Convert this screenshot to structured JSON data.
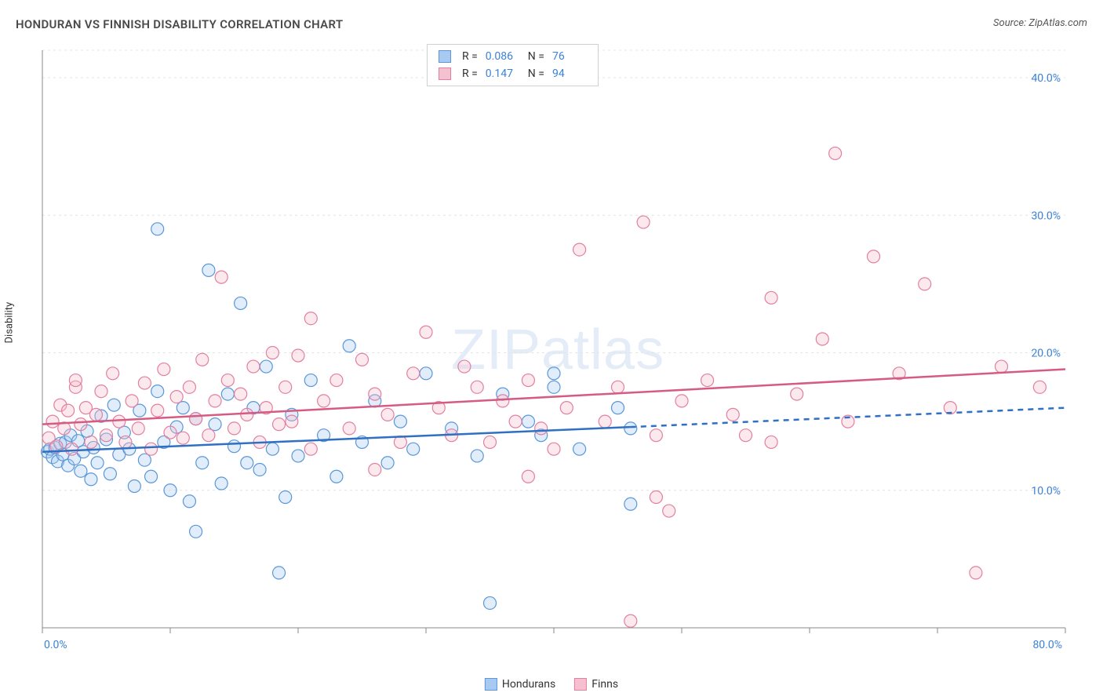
{
  "title": "HONDURAN VS FINNISH DISABILITY CORRELATION CHART",
  "source": "Source: ZipAtlas.com",
  "watermark": "ZIPatlas",
  "ylabel": "Disability",
  "chart": {
    "type": "scatter",
    "background_color": "#ffffff",
    "grid_color": "#e4e4e4",
    "axis_color": "#888888",
    "tick_color": "#666666",
    "label_color": "#3b82d6",
    "xlim": [
      0,
      80
    ],
    "ylim": [
      0,
      42
    ],
    "x_ticks": [
      0,
      10,
      20,
      30,
      40,
      50,
      60,
      70,
      80
    ],
    "x_tick_labels": {
      "0": "0.0%",
      "80": "80.0%"
    },
    "y_grid": [
      10,
      20,
      30,
      40
    ],
    "y_tick_labels": {
      "10": "10.0%",
      "20": "20.0%",
      "30": "30.0%",
      "40": "40.0%"
    },
    "marker_radius": 8,
    "marker_stroke_width": 1.2,
    "marker_fill_opacity": 0.35,
    "trend_line_width": 2.5,
    "series": [
      {
        "id": "hondurans",
        "label": "Hondurans",
        "color_fill": "#a8caf0",
        "color_stroke": "#5a97d8",
        "trend_color": "#2f6fc4",
        "R": "0.086",
        "N": "76",
        "trend": {
          "x1": 0,
          "y1": 12.8,
          "x2": 46,
          "y2": 14.6,
          "x2_dashed": 80,
          "y2_dashed": 16.0
        },
        "points": [
          [
            0.4,
            12.8
          ],
          [
            0.6,
            13.0
          ],
          [
            0.8,
            12.4
          ],
          [
            1.0,
            13.1
          ],
          [
            1.2,
            12.1
          ],
          [
            1.4,
            13.4
          ],
          [
            1.6,
            12.6
          ],
          [
            1.8,
            13.5
          ],
          [
            2.0,
            11.8
          ],
          [
            2.2,
            14.0
          ],
          [
            2.5,
            12.3
          ],
          [
            2.8,
            13.6
          ],
          [
            3.0,
            11.4
          ],
          [
            3.2,
            12.8
          ],
          [
            3.5,
            14.3
          ],
          [
            3.8,
            10.8
          ],
          [
            4.0,
            13.1
          ],
          [
            4.3,
            12.0
          ],
          [
            4.6,
            15.4
          ],
          [
            5.0,
            13.7
          ],
          [
            5.3,
            11.2
          ],
          [
            5.6,
            16.2
          ],
          [
            6.0,
            12.6
          ],
          [
            6.4,
            14.2
          ],
          [
            6.8,
            13.0
          ],
          [
            7.2,
            10.3
          ],
          [
            7.6,
            15.8
          ],
          [
            8.0,
            12.2
          ],
          [
            8.5,
            11.0
          ],
          [
            9.0,
            17.2
          ],
          [
            9.0,
            29.0
          ],
          [
            9.5,
            13.5
          ],
          [
            10.0,
            10.0
          ],
          [
            10.5,
            14.6
          ],
          [
            11.0,
            16.0
          ],
          [
            11.5,
            9.2
          ],
          [
            12.0,
            15.2
          ],
          [
            12.0,
            7.0
          ],
          [
            12.5,
            12.0
          ],
          [
            13.0,
            26.0
          ],
          [
            13.5,
            14.8
          ],
          [
            14.0,
            10.5
          ],
          [
            14.5,
            17.0
          ],
          [
            15.0,
            13.2
          ],
          [
            15.5,
            23.6
          ],
          [
            16.0,
            12.0
          ],
          [
            16.5,
            16.0
          ],
          [
            17.0,
            11.5
          ],
          [
            17.5,
            19.0
          ],
          [
            18.0,
            13.0
          ],
          [
            18.5,
            4.0
          ],
          [
            19.0,
            9.5
          ],
          [
            19.5,
            15.5
          ],
          [
            20.0,
            12.5
          ],
          [
            21.0,
            18.0
          ],
          [
            22.0,
            14.0
          ],
          [
            23.0,
            11.0
          ],
          [
            24.0,
            20.5
          ],
          [
            25.0,
            13.5
          ],
          [
            26.0,
            16.5
          ],
          [
            27.0,
            12.0
          ],
          [
            28.0,
            15.0
          ],
          [
            29.0,
            13.0
          ],
          [
            30.0,
            18.5
          ],
          [
            32.0,
            14.5
          ],
          [
            34.0,
            12.5
          ],
          [
            35.0,
            1.8
          ],
          [
            36.0,
            17.0
          ],
          [
            38.0,
            15.0
          ],
          [
            39.0,
            14.0
          ],
          [
            40.0,
            17.5
          ],
          [
            42.0,
            13.0
          ],
          [
            45.0,
            16.0
          ],
          [
            46.0,
            9.0
          ],
          [
            46.0,
            14.5
          ],
          [
            40.0,
            18.5
          ]
        ]
      },
      {
        "id": "finns",
        "label": "Finns",
        "color_fill": "#f5c0cf",
        "color_stroke": "#e37fa0",
        "trend_color": "#d65b83",
        "R": "0.147",
        "N": "94",
        "trend": {
          "x1": 0,
          "y1": 14.8,
          "x2": 80,
          "y2": 18.8
        },
        "points": [
          [
            0.5,
            13.8
          ],
          [
            0.8,
            15.0
          ],
          [
            1.1,
            13.2
          ],
          [
            1.4,
            16.2
          ],
          [
            1.7,
            14.5
          ],
          [
            2.0,
            15.8
          ],
          [
            2.3,
            13.0
          ],
          [
            2.6,
            17.5
          ],
          [
            2.6,
            18.0
          ],
          [
            3.0,
            14.8
          ],
          [
            3.4,
            16.0
          ],
          [
            3.8,
            13.5
          ],
          [
            4.2,
            15.5
          ],
          [
            4.6,
            17.2
          ],
          [
            5.0,
            14.0
          ],
          [
            5.5,
            18.5
          ],
          [
            6.0,
            15.0
          ],
          [
            6.5,
            13.5
          ],
          [
            7.0,
            16.5
          ],
          [
            7.5,
            14.5
          ],
          [
            8.0,
            17.8
          ],
          [
            8.5,
            13.0
          ],
          [
            9.0,
            15.8
          ],
          [
            9.5,
            18.8
          ],
          [
            10.0,
            14.2
          ],
          [
            10.5,
            16.8
          ],
          [
            11.0,
            13.8
          ],
          [
            11.5,
            17.5
          ],
          [
            12.0,
            15.2
          ],
          [
            12.5,
            19.5
          ],
          [
            13.0,
            14.0
          ],
          [
            13.5,
            16.5
          ],
          [
            14.0,
            25.5
          ],
          [
            14.5,
            18.0
          ],
          [
            15.0,
            14.5
          ],
          [
            15.5,
            17.0
          ],
          [
            16.0,
            15.5
          ],
          [
            16.5,
            19.0
          ],
          [
            17.0,
            13.5
          ],
          [
            17.5,
            16.0
          ],
          [
            18.0,
            20.0
          ],
          [
            18.5,
            14.8
          ],
          [
            19.0,
            17.5
          ],
          [
            19.5,
            15.0
          ],
          [
            20.0,
            19.8
          ],
          [
            21.0,
            22.5
          ],
          [
            21.0,
            13.0
          ],
          [
            22.0,
            16.5
          ],
          [
            23.0,
            18.0
          ],
          [
            24.0,
            14.5
          ],
          [
            25.0,
            19.5
          ],
          [
            26.0,
            17.0
          ],
          [
            26.0,
            11.5
          ],
          [
            27.0,
            15.5
          ],
          [
            28.0,
            13.5
          ],
          [
            29.0,
            18.5
          ],
          [
            30.0,
            21.5
          ],
          [
            31.0,
            16.0
          ],
          [
            32.0,
            14.0
          ],
          [
            33.0,
            19.0
          ],
          [
            34.0,
            17.5
          ],
          [
            35.0,
            13.5
          ],
          [
            36.0,
            16.5
          ],
          [
            37.0,
            15.0
          ],
          [
            38.0,
            18.0
          ],
          [
            38.0,
            11.0
          ],
          [
            39.0,
            14.5
          ],
          [
            40.0,
            13.0
          ],
          [
            41.0,
            16.0
          ],
          [
            42.0,
            27.5
          ],
          [
            44.0,
            15.0
          ],
          [
            45.0,
            17.5
          ],
          [
            46.0,
            0.5
          ],
          [
            47.0,
            29.5
          ],
          [
            48.0,
            14.0
          ],
          [
            48.0,
            9.5
          ],
          [
            49.0,
            8.5
          ],
          [
            50.0,
            16.5
          ],
          [
            52.0,
            18.0
          ],
          [
            54.0,
            15.5
          ],
          [
            55.0,
            14.0
          ],
          [
            57.0,
            24.0
          ],
          [
            57.0,
            13.5
          ],
          [
            59.0,
            17.0
          ],
          [
            61.0,
            21.0
          ],
          [
            62.0,
            34.5
          ],
          [
            63.0,
            15.0
          ],
          [
            65.0,
            27.0
          ],
          [
            67.0,
            18.5
          ],
          [
            69.0,
            25.0
          ],
          [
            71.0,
            16.0
          ],
          [
            73.0,
            4.0
          ],
          [
            75.0,
            19.0
          ],
          [
            78.0,
            17.5
          ]
        ]
      }
    ],
    "stats_labels": {
      "R": "R =",
      "N": "N ="
    },
    "bottom_legend": [
      {
        "label": "Hondurans",
        "fill": "#a8caf0",
        "stroke": "#5a97d8"
      },
      {
        "label": "Finns",
        "fill": "#f5c0cf",
        "stroke": "#e37fa0"
      }
    ]
  }
}
